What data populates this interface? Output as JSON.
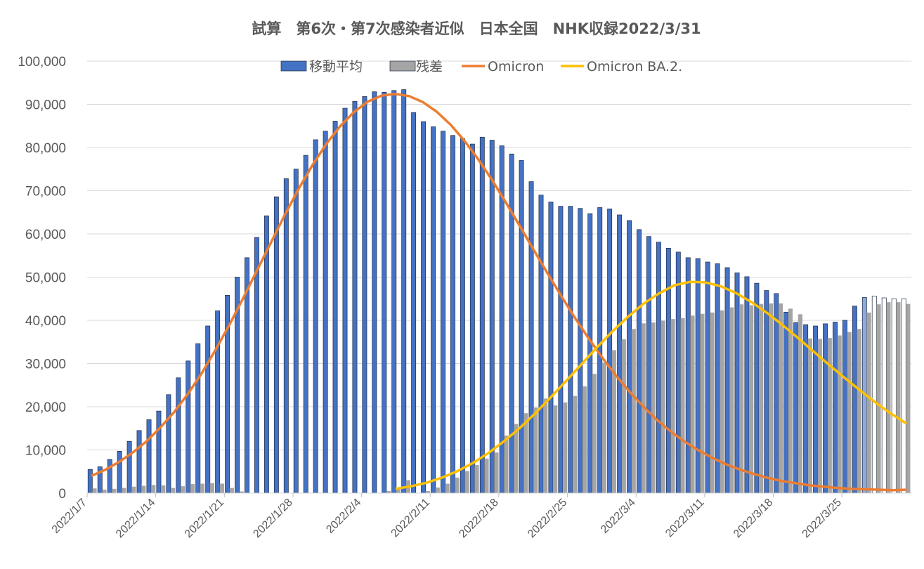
{
  "chart_data": {
    "type": "bar",
    "title": "試算　第6次・第7次感染者近似　日本全国　NHK収録2022/3/31",
    "xlabel": "",
    "ylabel": "",
    "ylim": [
      0,
      100000
    ],
    "ytick_step": 10000,
    "y_tick_labels": [
      "0",
      "10,000",
      "20,000",
      "30,000",
      "40,000",
      "50,000",
      "60,000",
      "70,000",
      "80,000",
      "90,000",
      "100,000"
    ],
    "x_tick_labels": [
      "2022/1/7",
      "2022/1/14",
      "2022/1/21",
      "2022/1/28",
      "2022/2/4",
      "2022/2/11",
      "2022/2/18",
      "2022/2/25",
      "2022/3/4",
      "2022/3/11",
      "2022/3/18",
      "2022/3/25"
    ],
    "grid": true,
    "legend_position": "top",
    "start_date": "2022/1/7",
    "series": [
      {
        "name": "移動平均",
        "type": "bar",
        "color": "#4472C4",
        "values": [
          5500,
          6100,
          7800,
          9700,
          12000,
          14500,
          17000,
          19000,
          22800,
          26700,
          30600,
          34600,
          38700,
          42200,
          45800,
          50000,
          54500,
          59200,
          64200,
          68600,
          72800,
          75000,
          78200,
          81800,
          83800,
          86100,
          89100,
          90700,
          91800,
          92900,
          92800,
          93200,
          93400,
          88100,
          86000,
          84800,
          83800,
          82800,
          82100,
          80800,
          82400,
          81700,
          80400,
          78500,
          77000,
          72100,
          69000,
          67400,
          66400,
          66400,
          65900,
          64700,
          66100,
          65800,
          64400,
          63100,
          61000,
          59400,
          58100,
          56700,
          55800,
          54500,
          54300,
          53500,
          53100,
          52200,
          51000,
          50100,
          48600,
          46900,
          46200,
          41900,
          39500,
          39000,
          38700,
          39200,
          39600,
          40000,
          43300,
          45300,
          45600,
          45200,
          45000,
          45000
        ]
      },
      {
        "name": "残差",
        "type": "bar",
        "color": "#A5A5A5",
        "values": [
          1100,
          800,
          1000,
          1200,
          1500,
          1700,
          1900,
          1800,
          1200,
          1600,
          2100,
          2200,
          2300,
          2200,
          1200,
          400,
          0,
          0,
          0,
          0,
          0,
          0,
          0,
          0,
          0,
          0,
          0,
          0,
          0,
          0,
          500,
          1300,
          3000,
          0,
          500,
          1300,
          2200,
          3600,
          5100,
          6500,
          8000,
          9400,
          13300,
          16000,
          18500,
          19800,
          21900,
          20300,
          21000,
          22500,
          24700,
          27600,
          30200,
          33100,
          35600,
          38000,
          39300,
          39500,
          39900,
          40300,
          40500,
          41100,
          41500,
          41800,
          42300,
          43000,
          43700,
          43500,
          43800,
          43900,
          43900,
          42700,
          41400,
          35800,
          35700,
          35900,
          36500,
          37300,
          38000,
          41800,
          43700,
          44200,
          44200,
          43800
        ]
      },
      {
        "name": "Omicron",
        "type": "line",
        "color": "#ED7D31",
        "values": [
          4000,
          5400,
          7200,
          9400,
          12000,
          15200,
          18800,
          23000,
          27800,
          33200,
          39000,
          45200,
          51600,
          58000,
          64400,
          70400,
          75900,
          80800,
          84900,
          88200,
          90600,
          92000,
          92400,
          91900,
          90500,
          88300,
          85300,
          81600,
          77300,
          72500,
          67300,
          61900,
          56400,
          51000,
          45700,
          40600,
          35800,
          31300,
          27100,
          23300,
          19900,
          16800,
          14100,
          11800,
          9800,
          8100,
          6600,
          5400,
          4400,
          3500,
          2800,
          2300,
          1800,
          1500,
          1200,
          1000,
          900,
          800,
          700,
          800
        ]
      },
      {
        "name": "Omicron BA.2.",
        "type": "line",
        "color": "#FFC000",
        "values": [
          1000,
          1600,
          2400,
          3600,
          5100,
          7000,
          9300,
          12000,
          15000,
          18400,
          22100,
          25900,
          29800,
          33700,
          37400,
          40800,
          43800,
          46200,
          48100,
          48900,
          48800,
          47900,
          46300,
          44200,
          41700,
          38900,
          35900,
          32800,
          29700,
          26700,
          23800,
          21000,
          18400,
          16100
        ]
      }
    ]
  }
}
